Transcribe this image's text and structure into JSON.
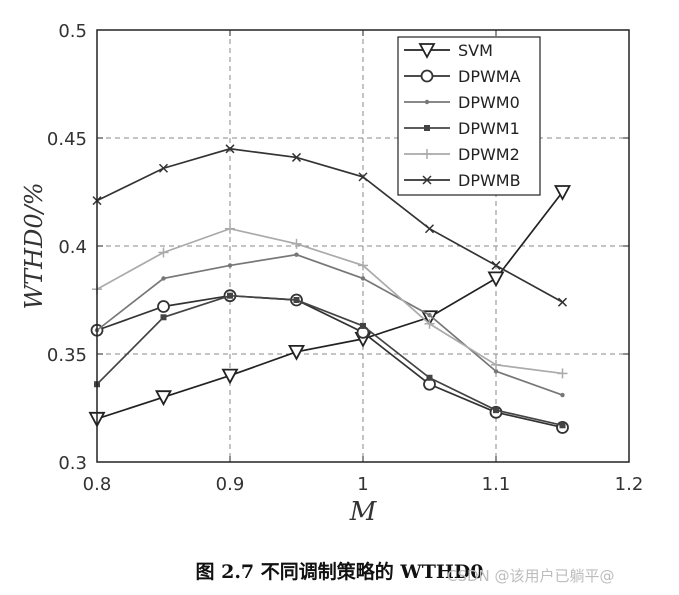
{
  "chart_data": {
    "type": "line",
    "xlabel": "M",
    "ylabel": "WTHD0/%",
    "xlim": [
      0.8,
      1.2
    ],
    "ylim": [
      0.3,
      0.5
    ],
    "xticks": [
      "0.8",
      "0.9",
      "1",
      "1.1",
      "1.2"
    ],
    "yticks": [
      "0.3",
      "0.35",
      "0.4",
      "0.45",
      "0.5"
    ],
    "grid": true,
    "legend_position": "top-right",
    "x": [
      0.8,
      0.85,
      0.9,
      0.95,
      1.0,
      1.05,
      1.1,
      1.15
    ],
    "series": [
      {
        "name": "SVM",
        "marker": "triangle-down",
        "color": "#222222",
        "values": [
          0.32,
          0.33,
          0.34,
          0.351,
          0.357,
          0.367,
          0.385,
          0.425
        ]
      },
      {
        "name": "DPWMA",
        "marker": "circle",
        "color": "#333333",
        "values": [
          0.361,
          0.372,
          0.377,
          0.375,
          0.36,
          0.336,
          0.323,
          0.316
        ]
      },
      {
        "name": "DPWM0",
        "marker": "dot",
        "color": "#777777",
        "values": [
          0.361,
          0.385,
          0.391,
          0.396,
          0.385,
          0.368,
          0.342,
          0.331
        ]
      },
      {
        "name": "DPWM1",
        "marker": "square",
        "color": "#444444",
        "values": [
          0.336,
          0.367,
          0.377,
          0.375,
          0.363,
          0.339,
          0.324,
          0.317
        ]
      },
      {
        "name": "DPWM2",
        "marker": "plus",
        "color": "#aaaaaa",
        "values": [
          0.38,
          0.397,
          0.408,
          0.401,
          0.391,
          0.364,
          0.345,
          0.341
        ]
      },
      {
        "name": "DPWMB",
        "marker": "x",
        "color": "#333333",
        "values": [
          0.421,
          0.436,
          0.445,
          0.441,
          0.432,
          0.408,
          0.391,
          0.374
        ]
      }
    ]
  },
  "caption": "图 2.7  不同调制策略的 WTHD0",
  "watermark": "CSDN @该用户已躺平@"
}
